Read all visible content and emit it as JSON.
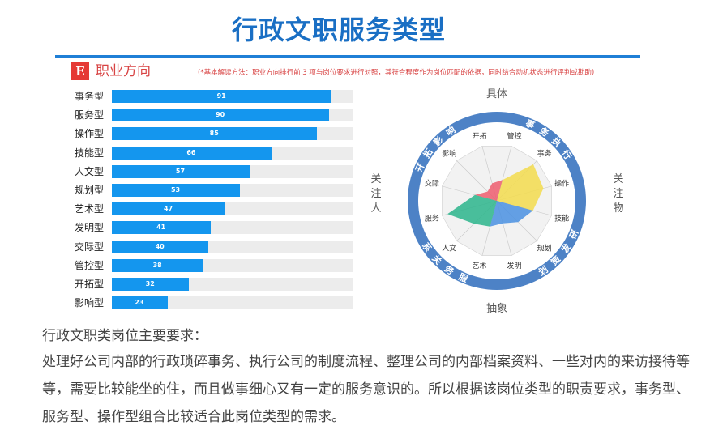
{
  "page": {
    "title": "行政文职服务类型",
    "badge": "E",
    "subtitle": "职业方向",
    "note": "(*基本解读方法：职业方向排行前 3 项与岗位要求进行对照，其符合程度作为岗位匹配的依据，同时结合动机状态进行评判或勘助)"
  },
  "chart_data": [
    {
      "type": "bar",
      "orientation": "horizontal",
      "categories": [
        "事务型",
        "服务型",
        "操作型",
        "技能型",
        "人文型",
        "规划型",
        "艺术型",
        "发明型",
        "交际型",
        "管控型",
        "开拓型",
        "影响型"
      ],
      "values": [
        91,
        90,
        85,
        66,
        57,
        53,
        47,
        41,
        40,
        38,
        32,
        23
      ],
      "xlim": [
        0,
        100
      ],
      "bar_color": "#1496ee"
    },
    {
      "type": "radar",
      "axes": [
        "管控",
        "事务",
        "操作",
        "技能",
        "规划",
        "发明",
        "艺术",
        "人文",
        "服务",
        "交际",
        "影响",
        "开拓"
      ],
      "rlim": [
        0,
        100
      ],
      "ring_labels": [
        "事务执行",
        "研发策划",
        "服务关系",
        "开拓影响"
      ],
      "outer_labels": {
        "top": "具体",
        "bottom": "抽象",
        "left": "关注人",
        "right": "关注物"
      },
      "sectors": [
        {
          "axes": [
            "管控",
            "事务",
            "操作",
            "技能"
          ],
          "values": [
            38,
            91,
            85,
            66
          ],
          "color": "#f3dc4e"
        },
        {
          "axes": [
            "技能",
            "规划",
            "发明",
            "艺术"
          ],
          "values": [
            66,
            53,
            41,
            47
          ],
          "color": "#4a90e2"
        },
        {
          "axes": [
            "艺术",
            "人文",
            "服务",
            "交际"
          ],
          "values": [
            47,
            57,
            90,
            40
          ],
          "color": "#2bb58c"
        },
        {
          "axes": [
            "交际",
            "影响",
            "开拓",
            "管控"
          ],
          "values": [
            40,
            23,
            32,
            38
          ],
          "color": "#ef5d6e"
        }
      ]
    }
  ],
  "text": {
    "heading": "行政文职类岗位主要要求：",
    "body": "处理好公司内部的行政琐碎事务、执行公司的制度流程、整理公司的内部档案资料、一些对内的来访接待等等，需要比较能坐的住，而且做事细心又有一定的服务意识的。所以根据该岗位类型的职责要求，事务型、服务型、操作型组合比较适合此岗位类型的需求。"
  }
}
